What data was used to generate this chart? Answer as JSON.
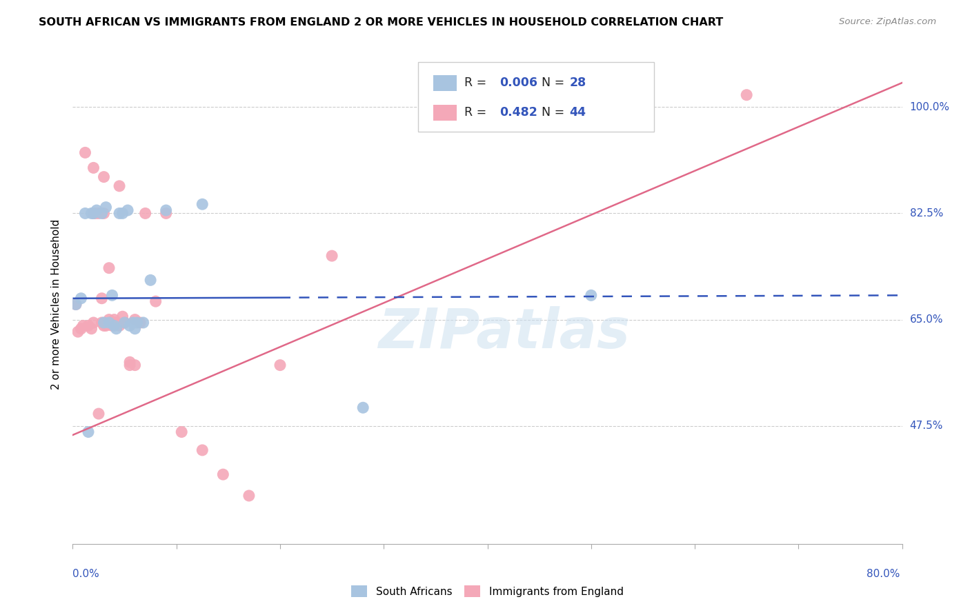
{
  "title": "SOUTH AFRICAN VS IMMIGRANTS FROM ENGLAND 2 OR MORE VEHICLES IN HOUSEHOLD CORRELATION CHART",
  "source": "Source: ZipAtlas.com",
  "ylabel": "2 or more Vehicles in Household",
  "yticks": [
    47.5,
    65.0,
    82.5,
    100.0
  ],
  "ytick_labels": [
    "47.5%",
    "65.0%",
    "82.5%",
    "100.0%"
  ],
  "xtick_positions": [
    0,
    10,
    20,
    30,
    40,
    50,
    60,
    70,
    80
  ],
  "xmin": 0.0,
  "xmax": 80.0,
  "ymin": 28.0,
  "ymax": 107.0,
  "legend_blue_r": "0.006",
  "legend_blue_n": "28",
  "legend_pink_r": "0.482",
  "legend_pink_n": "44",
  "legend_label_blue": "South Africans",
  "legend_label_pink": "Immigrants from England",
  "blue_color": "#a8c4e0",
  "pink_color": "#f4a8b8",
  "blue_line_color": "#3355bb",
  "pink_line_color": "#e06888",
  "watermark_text": "ZIPatlas",
  "blue_scatter_x": [
    0.3,
    0.8,
    1.5,
    2.0,
    2.3,
    2.8,
    3.2,
    3.5,
    3.8,
    4.0,
    4.2,
    4.5,
    4.8,
    5.0,
    5.3,
    5.5,
    5.8,
    6.0,
    6.2,
    6.8,
    7.5,
    9.0,
    12.5,
    28.0,
    50.0,
    1.8,
    1.2,
    3.0
  ],
  "blue_scatter_y": [
    67.5,
    68.5,
    46.5,
    82.5,
    83.0,
    82.5,
    83.5,
    64.5,
    69.0,
    64.0,
    63.5,
    82.5,
    82.5,
    64.5,
    83.0,
    64.0,
    64.5,
    63.5,
    64.5,
    64.5,
    71.5,
    83.0,
    84.0,
    50.5,
    69.0,
    82.5,
    82.5,
    64.5
  ],
  "pink_scatter_x": [
    0.3,
    0.5,
    0.8,
    1.0,
    1.5,
    1.8,
    2.0,
    2.0,
    2.2,
    2.5,
    2.8,
    3.0,
    3.0,
    3.2,
    3.5,
    3.8,
    4.0,
    4.2,
    4.5,
    4.8,
    5.0,
    5.5,
    6.0,
    6.5,
    7.0,
    9.0,
    10.5,
    12.5,
    14.5,
    17.0,
    20.0,
    25.0,
    65.0,
    2.0,
    3.0,
    4.5,
    1.2,
    5.5,
    3.5,
    2.8,
    4.0,
    6.0,
    2.5,
    8.0
  ],
  "pink_scatter_y": [
    67.5,
    63.0,
    63.5,
    64.0,
    64.0,
    63.5,
    64.5,
    82.5,
    82.5,
    82.5,
    64.5,
    64.0,
    82.5,
    64.0,
    65.0,
    64.0,
    64.5,
    64.5,
    64.0,
    65.5,
    64.5,
    57.5,
    65.0,
    64.5,
    82.5,
    82.5,
    46.5,
    43.5,
    39.5,
    36.0,
    57.5,
    75.5,
    102.0,
    90.0,
    88.5,
    87.0,
    92.5,
    58.0,
    73.5,
    68.5,
    65.0,
    57.5,
    49.5,
    68.0
  ],
  "blue_line_x0": 0.0,
  "blue_line_x1": 80.0,
  "blue_line_y0": 68.5,
  "blue_line_y1": 69.0,
  "blue_dash_start": 20.0,
  "pink_line_x0": 0.0,
  "pink_line_x1": 80.0,
  "pink_line_y0": 46.0,
  "pink_line_y1": 104.0
}
